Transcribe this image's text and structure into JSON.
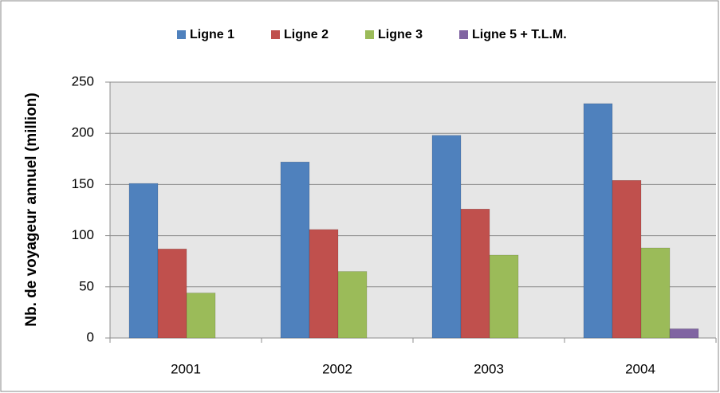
{
  "chart_data": {
    "type": "bar",
    "y_label": "Nb. de voyageur annuel (million)",
    "categories": [
      "2001",
      "2002",
      "2003",
      "2004"
    ],
    "series": [
      {
        "name": "Ligne 1",
        "color": "#4f81bd",
        "values": [
          151,
          172,
          198,
          229
        ]
      },
      {
        "name": "Ligne 2",
        "color": "#c0504d",
        "values": [
          87,
          106,
          126,
          154
        ]
      },
      {
        "name": "Ligne 3",
        "color": "#9bbb59",
        "values": [
          44,
          65,
          81,
          88
        ]
      },
      {
        "name": "Ligne 5 + T.L.M.",
        "color": "#8064a2",
        "values": [
          null,
          null,
          null,
          9
        ]
      }
    ],
    "ylim": [
      0,
      250
    ],
    "yticks": [
      0,
      50,
      100,
      150,
      200,
      250
    ],
    "grid": true,
    "legend": "top"
  }
}
